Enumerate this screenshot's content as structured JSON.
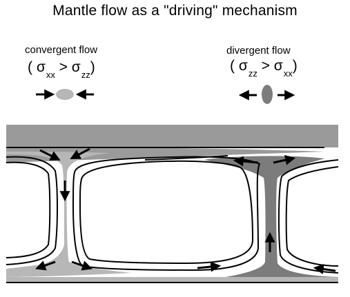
{
  "title": "Mantle flow as a \"driving\" mechanism",
  "convergent": {
    "label": "convergent flow",
    "open": "(",
    "sigma1": "σ",
    "sub1": "xx",
    "op": ">",
    "sigma2": "σ",
    "sub2": "zz",
    "close": ")"
  },
  "divergent": {
    "label": "divergent flow",
    "open": "(",
    "sigma1": "σ",
    "sub1": "zz",
    "op": ">",
    "sigma2": "σ",
    "sub2": "xx",
    "close": ")"
  },
  "colors": {
    "lithosphere": "#9a9a9a",
    "convergent_fill": "#b7b7b7",
    "divergent_fill": "#7c7c7c",
    "line": "#000000"
  }
}
